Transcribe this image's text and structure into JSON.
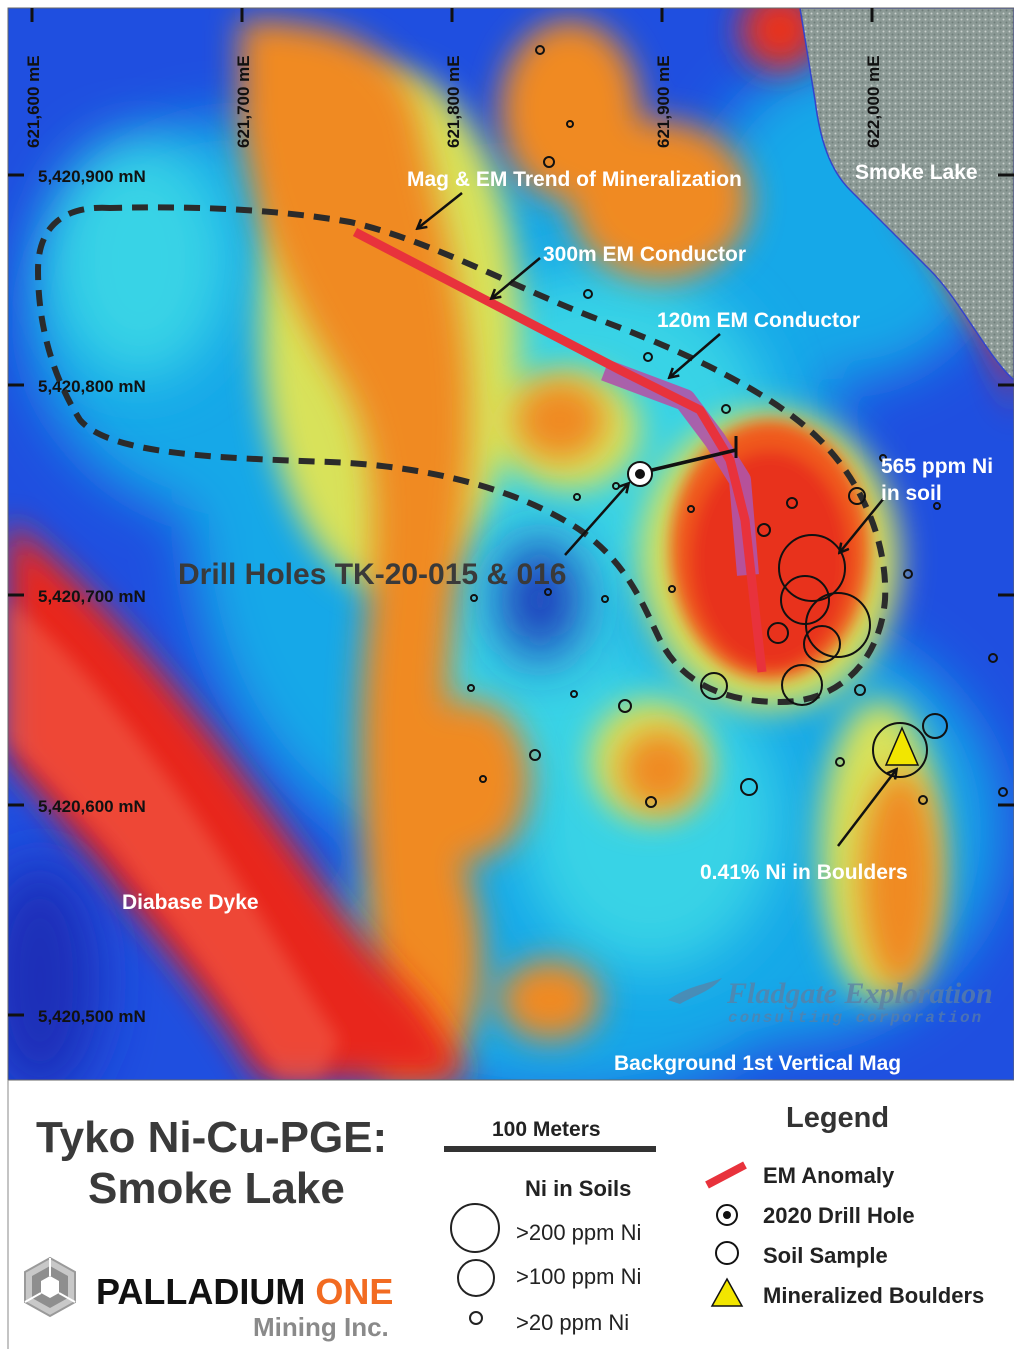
{
  "map": {
    "easting_labels": [
      "621,600 mE",
      "621,700 mE",
      "621,800 mE",
      "621,900 mE",
      "622,000 mE"
    ],
    "northing_labels": [
      "5,420,900 mN",
      "5,420,800 mN",
      "5,420,700 mN",
      "5,420,600 mN",
      "5,420,500 mN"
    ],
    "lake_label": "Smoke Lake",
    "dyke_label": "Diabase Dyke",
    "background_label": "Background 1st Vertical Mag",
    "watermark_line1": "Fladgate Exploration",
    "watermark_line2": "consulting corporation",
    "colors": {
      "em_anomaly": "#e8323c",
      "em_conductor_120": "#b054a8",
      "trend_outline": "#2b2b2b",
      "boulder": "#f2e600",
      "lake": "#8c9a96"
    }
  },
  "annotations": {
    "trend": "Mag & EM Trend of Mineralization",
    "em300": "300m EM Conductor",
    "em120": "120m EM Conductor",
    "ni565_line1": "565 ppm Ni",
    "ni565_line2": "in soil",
    "drill_holes": "Drill Holes TK-20-015 & 016",
    "boulders": "0.41% Ni in Boulders"
  },
  "title": {
    "line1": "Tyko Ni-Cu-PGE:",
    "line2": "Smoke Lake"
  },
  "scale_bar": {
    "label": "100 Meters"
  },
  "soils": {
    "heading": "Ni in Soils",
    "items": [
      ">200 ppm Ni",
      ">100 ppm Ni",
      ">20 ppm Ni"
    ]
  },
  "legend": {
    "heading": "Legend",
    "items": [
      "EM Anomaly",
      "2020 Drill Hole",
      "Soil Sample",
      "Mineralized Boulders"
    ]
  },
  "company": {
    "name_part1": "PALLADIUM",
    "name_part2": "ONE",
    "subtitle": "Mining Inc.",
    "accent": "#f26b21"
  }
}
